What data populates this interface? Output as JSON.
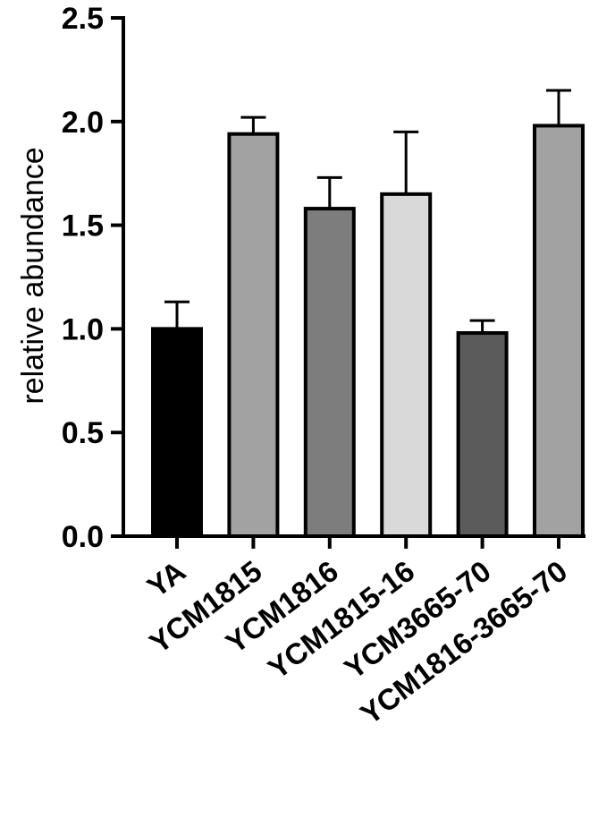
{
  "chart_data": {
    "type": "bar",
    "title": "",
    "xlabel": "",
    "ylabel": "relative abundance",
    "categories": [
      "YA",
      "YCM1815",
      "YCM1816",
      "YCM1815-16",
      "YCM3665-70",
      "YCM1816-3665-70"
    ],
    "values": [
      1.0,
      1.94,
      1.58,
      1.65,
      0.98,
      1.98
    ],
    "errors": [
      0.13,
      0.08,
      0.15,
      0.3,
      0.06,
      0.17
    ],
    "colors": [
      "#000000",
      "#a2a2a2",
      "#7d7d7d",
      "#d9d9d9",
      "#5b5b5b",
      "#a2a2a2"
    ],
    "ylim": [
      0,
      2.5
    ],
    "yticks": [
      "0.0",
      "0.5",
      "1.0",
      "1.5",
      "2.0",
      "2.5"
    ],
    "grid": false,
    "legend": "none"
  }
}
